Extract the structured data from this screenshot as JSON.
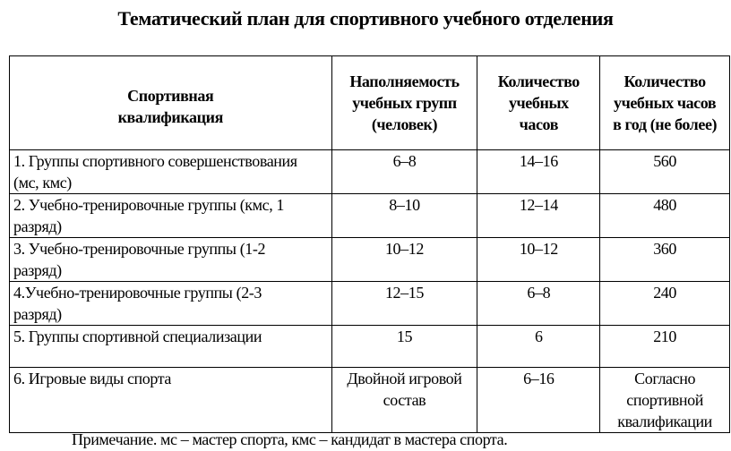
{
  "title": "Тематический план для спортивного учебного отделения",
  "headers": [
    "Спортивная квалификация",
    "Наполняемость учебных групп (человек)",
    "Количество учебных часов",
    "Количество учебных часов в год (не более)"
  ],
  "rows": [
    [
      "1. Группы спортивного совершенствования (мс, кмс)",
      "6–8",
      "14–16",
      "560"
    ],
    [
      "2. Учебно-тренировочные группы (кмс, 1 разряд)",
      "8–10",
      "12–14",
      "480"
    ],
    [
      "3. Учебно-тренировочные группы (1-2 разряд)",
      "10–12",
      "10–12",
      "360"
    ],
    [
      "4.Учебно-тренировочные группы (2-3 разряд)",
      "12–15",
      "6–8",
      "240"
    ],
    [
      "5. Группы спортивной специализации",
      "15",
      "6",
      "210"
    ],
    [
      "6. Игровые виды спорта",
      "Двойной игровой состав",
      "6–16",
      "Согласно спортивной квалификации"
    ]
  ],
  "note": "Примечание.  мс – мастер спорта, кмс – кандидат в мастера спорта."
}
